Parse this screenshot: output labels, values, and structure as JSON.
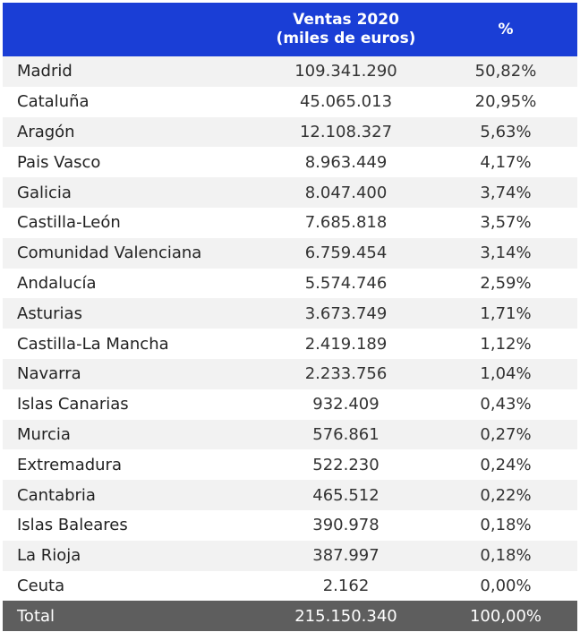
{
  "header": {
    "region_label": "",
    "sales_line1": "Ventas 2020",
    "sales_line2": "(miles de euros)",
    "pct_label": "%"
  },
  "rows": [
    {
      "region": "Madrid",
      "sales": "109.341.290",
      "pct": "50,82%"
    },
    {
      "region": "Cataluña",
      "sales": "45.065.013",
      "pct": "20,95%"
    },
    {
      "region": "Aragón",
      "sales": "12.108.327",
      "pct": "5,63%"
    },
    {
      "region": "Pais Vasco",
      "sales": "8.963.449",
      "pct": "4,17%"
    },
    {
      "region": "Galicia",
      "sales": "8.047.400",
      "pct": "3,74%"
    },
    {
      "region": "Castilla-León",
      "sales": "7.685.818",
      "pct": "3,57%"
    },
    {
      "region": "Comunidad Valenciana",
      "sales": "6.759.454",
      "pct": "3,14%"
    },
    {
      "region": "Andalucía",
      "sales": "5.574.746",
      "pct": "2,59%"
    },
    {
      "region": "Asturias",
      "sales": "3.673.749",
      "pct": "1,71%"
    },
    {
      "region": "Castilla-La Mancha",
      "sales": "2.419.189",
      "pct": "1,12%"
    },
    {
      "region": "Navarra",
      "sales": "2.233.756",
      "pct": "1,04%"
    },
    {
      "region": "Islas Canarias",
      "sales": "932.409",
      "pct": "0,43%"
    },
    {
      "region": "Murcia",
      "sales": "576.861",
      "pct": "0,27%"
    },
    {
      "region": "Extremadura",
      "sales": "522.230",
      "pct": "0,24%"
    },
    {
      "region": "Cantabria",
      "sales": "465.512",
      "pct": "0,22%"
    },
    {
      "region": "Islas Baleares",
      "sales": "390.978",
      "pct": "0,18%"
    },
    {
      "region": "La Rioja",
      "sales": "387.997",
      "pct": "0,18%"
    },
    {
      "region": "Ceuta",
      "sales": "2.162",
      "pct": "0,00%"
    }
  ],
  "total": {
    "region": "Total",
    "sales": "215.150.340",
    "pct": "100,00%"
  },
  "colors": {
    "header_bg": "#1a3ed6",
    "stripe": "#f2f2f2",
    "total_bg": "#5e5e5e"
  }
}
